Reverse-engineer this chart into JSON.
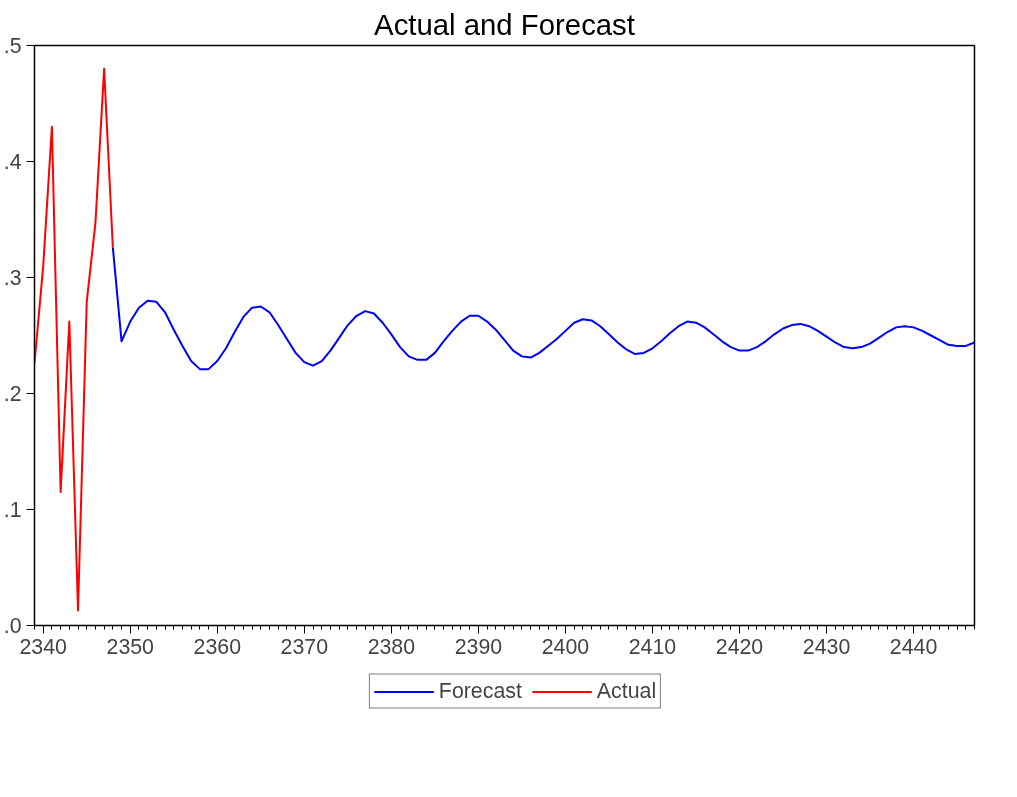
{
  "chart_data": {
    "type": "line",
    "title": "Actual and Forecast",
    "xlim": [
      2339,
      2447
    ],
    "ylim": [
      0,
      0.5
    ],
    "xticks": [
      2340,
      2350,
      2360,
      2370,
      2380,
      2390,
      2400,
      2410,
      2420,
      2430,
      2440
    ],
    "yticks": [
      {
        "value": 0,
        "label": ".0"
      },
      {
        "value": 0.1,
        "label": ".1"
      },
      {
        "value": 0.2,
        "label": ".2"
      },
      {
        "value": 0.3,
        "label": ".3"
      },
      {
        "value": 0.4,
        "label": ".4"
      },
      {
        "value": 0.5,
        "label": ".5"
      }
    ],
    "grid": false,
    "legend": "bottom",
    "marker": "none",
    "line_style": "solid",
    "series": [
      {
        "name": "Forecast",
        "color": "#0000ff",
        "x": [
          2348,
          2349,
          2350,
          2351,
          2352,
          2353,
          2354,
          2355,
          2356,
          2357,
          2358,
          2359,
          2360,
          2361,
          2362,
          2363,
          2364,
          2365,
          2366,
          2367,
          2368,
          2369,
          2370,
          2371,
          2372,
          2373,
          2374,
          2375,
          2376,
          2377,
          2378,
          2379,
          2380,
          2381,
          2382,
          2383,
          2384,
          2385,
          2386,
          2387,
          2388,
          2389,
          2390,
          2391,
          2392,
          2393,
          2394,
          2395,
          2396,
          2397,
          2398,
          2399,
          2400,
          2401,
          2402,
          2403,
          2404,
          2405,
          2406,
          2407,
          2408,
          2409,
          2410,
          2411,
          2412,
          2413,
          2414,
          2415,
          2416,
          2417,
          2418,
          2419,
          2420,
          2421,
          2422,
          2423,
          2424,
          2425,
          2426,
          2427,
          2428,
          2429,
          2430,
          2431,
          2432,
          2433,
          2434,
          2435,
          2436,
          2437,
          2438,
          2439,
          2440,
          2441,
          2442,
          2443,
          2444,
          2445,
          2446,
          2447
        ],
        "values": [
          0.326,
          0.245,
          0.262,
          0.274,
          0.28,
          0.279,
          0.27,
          0.255,
          0.241,
          0.228,
          0.221,
          0.221,
          0.228,
          0.239,
          0.253,
          0.266,
          0.274,
          0.275,
          0.27,
          0.259,
          0.247,
          0.235,
          0.227,
          0.224,
          0.228,
          0.237,
          0.248,
          0.259,
          0.267,
          0.271,
          0.269,
          0.261,
          0.251,
          0.24,
          0.232,
          0.229,
          0.229,
          0.235,
          0.245,
          0.254,
          0.262,
          0.267,
          0.267,
          0.262,
          0.255,
          0.246,
          0.237,
          0.232,
          0.231,
          0.235,
          0.241,
          0.247,
          0.254,
          0.261,
          0.264,
          0.263,
          0.258,
          0.251,
          0.244,
          0.238,
          0.234,
          0.235,
          0.239,
          0.245,
          0.252,
          0.258,
          0.262,
          0.261,
          0.257,
          0.251,
          0.245,
          0.24,
          0.237,
          0.237,
          0.24,
          0.245,
          0.251,
          0.256,
          0.259,
          0.26,
          0.258,
          0.254,
          0.249,
          0.244,
          0.24,
          0.239,
          0.24,
          0.243,
          0.248,
          0.253,
          0.257,
          0.258,
          0.257,
          0.254,
          0.25,
          0.246,
          0.242,
          0.241,
          0.241,
          0.244
        ]
      },
      {
        "name": "Actual",
        "color": "#ff0000",
        "x": [
          2339,
          2340,
          2341,
          2342,
          2343,
          2344,
          2345,
          2346,
          2347,
          2348
        ],
        "values": [
          0.226,
          0.31,
          0.43,
          0.115,
          0.262,
          0.013,
          0.279,
          0.347,
          0.48,
          0.326
        ]
      }
    ]
  }
}
